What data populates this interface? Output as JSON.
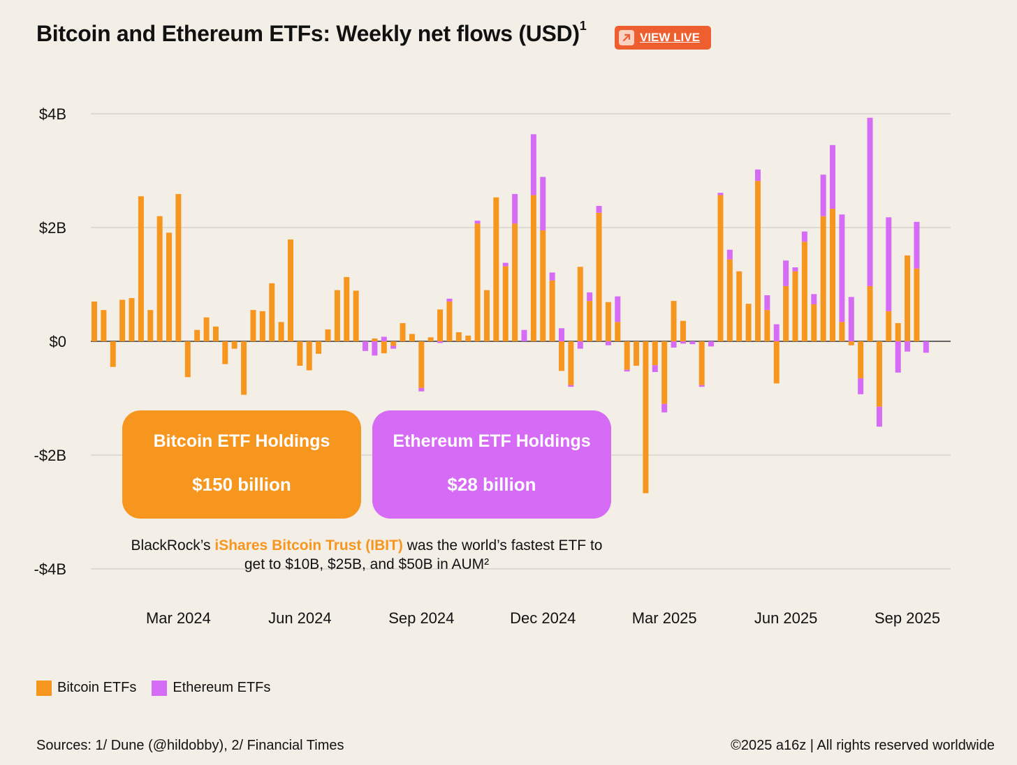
{
  "header": {
    "title": "Bitcoin and Ethereum ETFs: Weekly net flows (USD)",
    "title_sup": "1",
    "view_live_label": "VIEW LIVE",
    "view_live_icon": "arrow-up-right-icon"
  },
  "colors": {
    "bitcoin": "#F7961F",
    "ethereum": "#D66BF5",
    "accent": "#EE5F2F",
    "background": "#F3EFE7"
  },
  "callouts": {
    "bitcoin": {
      "title": "Bitcoin ETF Holdings",
      "value": "$150 billion"
    },
    "ethereum": {
      "title": "Ethereum ETF Holdings",
      "value": "$28 billion"
    }
  },
  "note": {
    "before": "BlackRock’s ",
    "highlight": "iShares Bitcoin Trust (IBIT)",
    "after": " was the world’s fastest ETF to get to $10B, $25B, and $50B in AUM²"
  },
  "legend": {
    "bitcoin": "Bitcoin ETFs",
    "ethereum": "Ethereum ETFs"
  },
  "footer": {
    "sources": "Sources: 1/ Dune (@hildobby), 2/ Financial Times",
    "copyright": "©2025 a16z | All rights reserved worldwide"
  },
  "chart_data": {
    "type": "bar",
    "stacked": true,
    "title": "Bitcoin and Ethereum ETFs: Weekly net flows (USD)",
    "ylim": [
      -4,
      4
    ],
    "y_unit": "billion USD",
    "grid": true,
    "legend_position": "bottom-left",
    "y_ticks": [
      {
        "value": 4,
        "label": "$4B"
      },
      {
        "value": 2,
        "label": "$2B"
      },
      {
        "value": 0,
        "label": "$0"
      },
      {
        "value": -2,
        "label": "-$2B"
      },
      {
        "value": -4,
        "label": "-$4B"
      }
    ],
    "x_ticks": [
      {
        "week": 9,
        "label": "Mar 2024"
      },
      {
        "week": 22,
        "label": "Jun 2024"
      },
      {
        "week": 35,
        "label": "Sep 2024"
      },
      {
        "week": 48,
        "label": "Dec 2024"
      },
      {
        "week": 61,
        "label": "Mar 2025"
      },
      {
        "week": 74,
        "label": "Jun 2025"
      },
      {
        "week": 87,
        "label": "Sep 2025"
      }
    ],
    "series": [
      {
        "name": "Bitcoin ETFs",
        "values": [
          0.7,
          0.55,
          -0.45,
          0.73,
          0.76,
          2.55,
          0.55,
          2.2,
          1.91,
          2.59,
          -0.63,
          0.2,
          0.42,
          0.26,
          -0.4,
          -0.13,
          -0.94,
          0.55,
          0.53,
          1.02,
          0.34,
          1.79,
          -0.43,
          -0.51,
          -0.22,
          0.21,
          0.9,
          1.13,
          0.89,
          0,
          0.05,
          -0.21,
          -0.08,
          0.32,
          0.13,
          -0.82,
          0.07,
          0.56,
          0.7,
          0.16,
          0.1,
          2.07,
          0.9,
          2.53,
          1.32,
          2.07,
          0,
          2.57,
          1.95,
          1.07,
          -0.52,
          -0.77,
          1.31,
          0.71,
          2.26,
          0.69,
          0.34,
          -0.5,
          -0.43,
          -2.67,
          -0.42,
          -1.1,
          0.71,
          0.36,
          0,
          -0.77,
          0,
          2.57,
          1.44,
          1.23,
          0.66,
          2.82,
          0.55,
          -0.74,
          0.97,
          1.23,
          1.75,
          0.65,
          2.2,
          2.33,
          0.34,
          -0.07,
          -0.65,
          0.97,
          -1.15,
          0.53,
          0.32,
          1.51,
          1.28,
          0
        ],
        "color": "#F7961F"
      },
      {
        "name": "Ethereum ETFs",
        "values": [
          0,
          0,
          0,
          0,
          0,
          0,
          0,
          0,
          0,
          0,
          0,
          0,
          0,
          0,
          0,
          0,
          0,
          0,
          0,
          0,
          0,
          0,
          0,
          0,
          0,
          0,
          0,
          0,
          0,
          -0.17,
          -0.25,
          0.08,
          -0.05,
          0,
          0,
          -0.06,
          0,
          -0.03,
          0.05,
          0,
          0,
          0.05,
          0,
          0,
          0.06,
          0.52,
          0.2,
          1.07,
          0.94,
          0.14,
          0.23,
          -0.03,
          -0.13,
          0.15,
          0.12,
          -0.07,
          0.45,
          -0.03,
          0,
          0,
          -0.12,
          -0.15,
          -0.11,
          -0.04,
          -0.05,
          -0.03,
          -0.09,
          0.04,
          0.17,
          0,
          0,
          0.2,
          0.26,
          0.3,
          0.45,
          0.07,
          0.18,
          0.18,
          0.73,
          1.12,
          1.89,
          0.78,
          -0.28,
          2.96,
          -0.35,
          1.65,
          -0.55,
          -0.18,
          0.82,
          -0.2
        ],
        "color": "#D66BF5"
      }
    ]
  }
}
